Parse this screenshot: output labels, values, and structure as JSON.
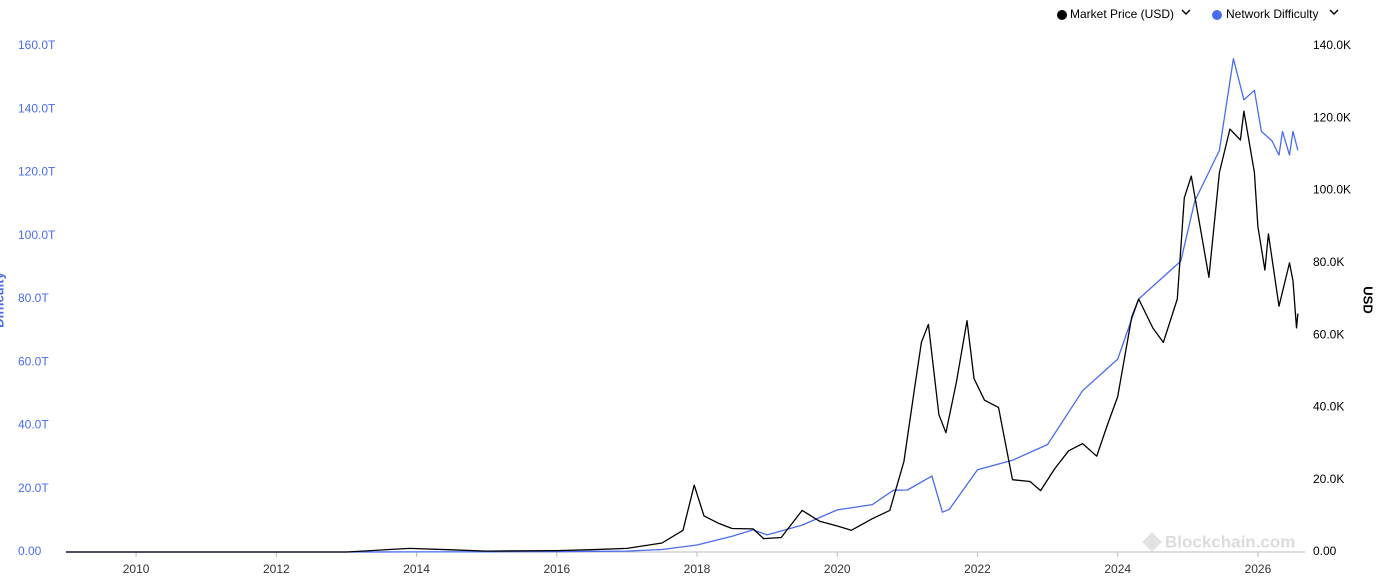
{
  "chart_data": {
    "type": "line",
    "xlim": [
      2009,
      2026.6
    ],
    "xticks": [
      2010,
      2012,
      2014,
      2016,
      2018,
      2020,
      2022,
      2024,
      2026
    ],
    "ylabel": "Difficulty",
    "ylim": [
      0,
      160
    ],
    "yticks": [
      {
        "value": 0,
        "label": "0.00"
      },
      {
        "value": 20,
        "label": "20.0T"
      },
      {
        "value": 40,
        "label": "40.0T"
      },
      {
        "value": 60,
        "label": "60.0T"
      },
      {
        "value": 80,
        "label": "80.0T"
      },
      {
        "value": 100,
        "label": "100.0T"
      },
      {
        "value": 120,
        "label": "120.0T"
      },
      {
        "value": 140,
        "label": "140.0T"
      },
      {
        "value": 160,
        "label": "160.0T"
      }
    ],
    "y2label": "USD",
    "y2lim": [
      0,
      140000
    ],
    "y2ticks": [
      {
        "value": 0,
        "label": "0.00"
      },
      {
        "value": 20000,
        "label": "20.0K"
      },
      {
        "value": 40000,
        "label": "40.0K"
      },
      {
        "value": 60000,
        "label": "60.0K"
      },
      {
        "value": 80000,
        "label": "80.0K"
      },
      {
        "value": 100000,
        "label": "100.0K"
      },
      {
        "value": 120000,
        "label": "120.0K"
      },
      {
        "value": 140000,
        "label": "140.0K"
      }
    ],
    "y_color": "#4a6cf0",
    "series": [
      {
        "name": "Market Price (USD)",
        "color": "#000000",
        "axis": "y2",
        "x": [
          2009.0,
          2010.5,
          2011.5,
          2013.0,
          2013.9,
          2014.5,
          2015.0,
          2016.0,
          2016.5,
          2017.0,
          2017.5,
          2017.8,
          2017.96,
          2018.1,
          2018.3,
          2018.5,
          2018.8,
          2018.95,
          2019.2,
          2019.5,
          2019.75,
          2020.0,
          2020.2,
          2020.5,
          2020.75,
          2020.95,
          2021.1,
          2021.2,
          2021.3,
          2021.45,
          2021.55,
          2021.7,
          2021.85,
          2021.95,
          2022.1,
          2022.3,
          2022.4,
          2022.5,
          2022.75,
          2022.9,
          2023.1,
          2023.3,
          2023.5,
          2023.7,
          2023.85,
          2024.0,
          2024.2,
          2024.3,
          2024.5,
          2024.65,
          2024.85,
          2024.95,
          2025.05,
          2025.3,
          2025.45,
          2025.6,
          2025.75,
          2025.8,
          2025.95,
          2026.0,
          2026.1,
          2026.15,
          2026.3,
          2026.45,
          2026.5,
          2026.55,
          2026.57
        ],
        "values": [
          0,
          0,
          10,
          13,
          1000,
          600,
          250,
          400,
          650,
          1000,
          2500,
          6000,
          18500,
          10000,
          8000,
          6500,
          6400,
          3700,
          4000,
          11500,
          8500,
          7200,
          6000,
          9200,
          11500,
          25000,
          45000,
          58000,
          63000,
          38000,
          33000,
          47000,
          64000,
          48000,
          42000,
          40000,
          30000,
          20000,
          19500,
          17000,
          23000,
          28000,
          30000,
          26500,
          35000,
          43000,
          65000,
          70000,
          62000,
          58000,
          70000,
          98000,
          104000,
          76000,
          105000,
          117000,
          114000,
          122000,
          105000,
          90000,
          78000,
          88000,
          68000,
          80000,
          75000,
          62000,
          66000
        ]
      },
      {
        "name": "Network Difficulty",
        "color": "#4a6cf0",
        "axis": "y",
        "x": [
          2009.0,
          2013.0,
          2014.0,
          2015.0,
          2016.0,
          2017.0,
          2017.5,
          2018.0,
          2018.5,
          2018.8,
          2019.0,
          2019.5,
          2020.0,
          2020.5,
          2020.8,
          2021.0,
          2021.35,
          2021.5,
          2021.6,
          2022.0,
          2022.5,
          2023.0,
          2023.5,
          2024.0,
          2024.3,
          2024.6,
          2024.9,
          2025.1,
          2025.45,
          2025.65,
          2025.8,
          2025.95,
          2026.05,
          2026.2,
          2026.3,
          2026.35,
          2026.45,
          2026.5,
          2026.57
        ],
        "values": [
          0,
          0.01,
          0.02,
          0.05,
          0.1,
          0.3,
          0.8,
          2.2,
          5,
          7,
          5.4,
          8.5,
          13.3,
          15,
          19.5,
          19.6,
          24,
          12.6,
          13.5,
          26,
          29,
          34,
          51,
          61,
          80,
          86,
          92,
          111,
          127,
          156,
          143,
          146,
          133,
          130,
          125.5,
          133,
          125.5,
          133,
          127
        ]
      }
    ]
  },
  "watermark": "Blockchain.com"
}
